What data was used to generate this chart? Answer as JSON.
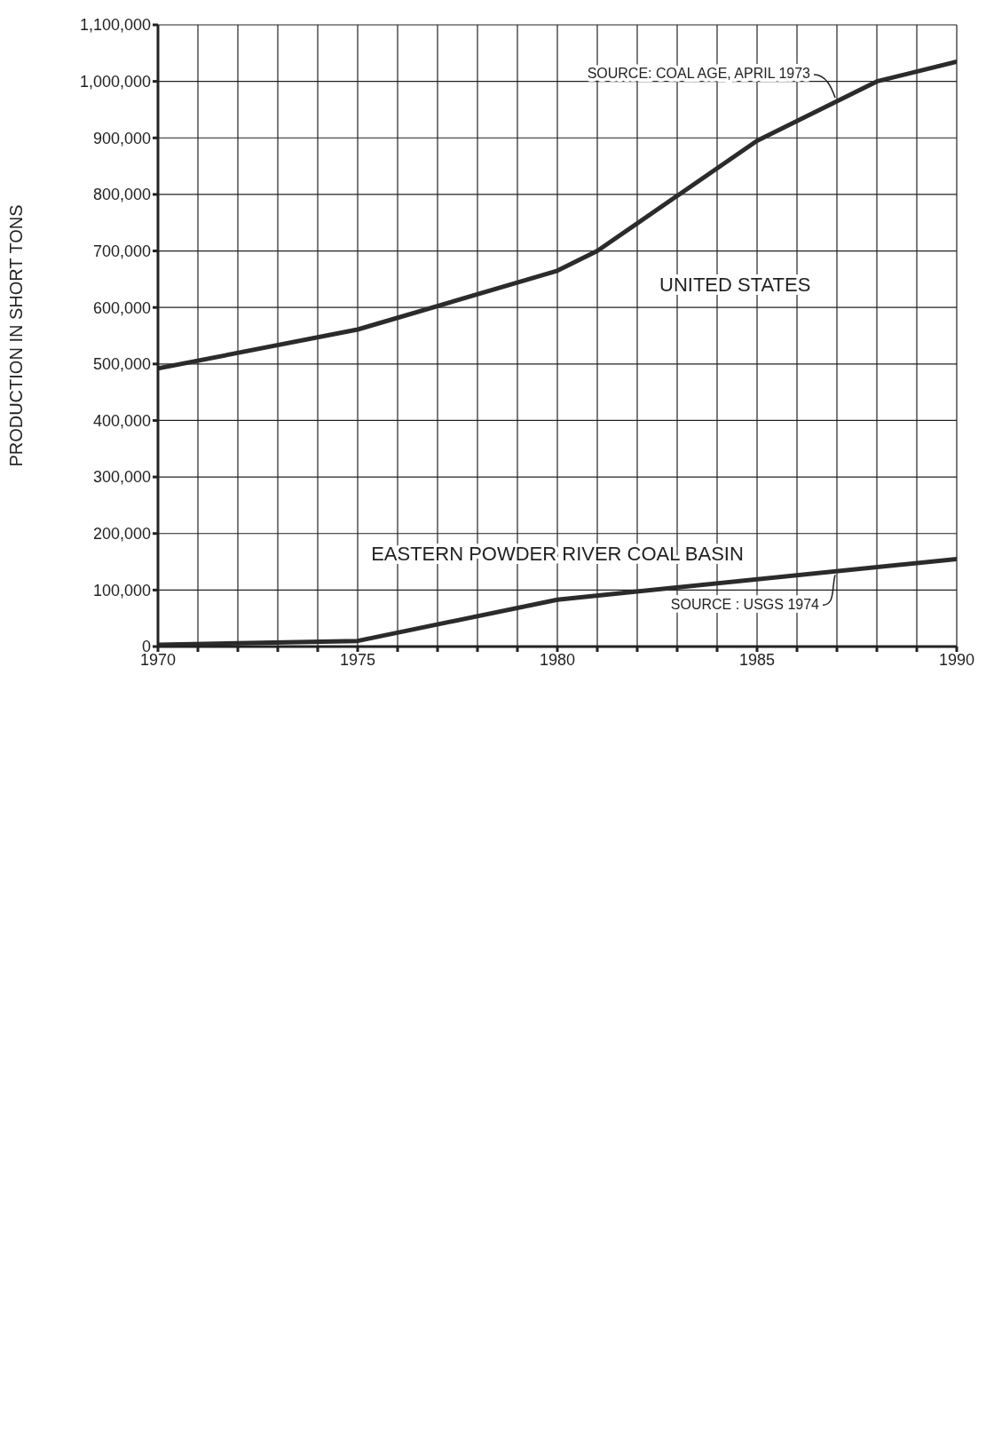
{
  "chart_data": {
    "type": "line",
    "ylabel": "PRODUCTION IN SHORT TONS",
    "series": [
      {
        "name": "UNITED STATES",
        "color": "#2b2b2b",
        "x": [
          1970,
          1975,
          1980,
          1981,
          1985,
          1988,
          1990
        ],
        "values": [
          492000,
          561000,
          665000,
          700000,
          895000,
          1000000,
          1035000
        ]
      },
      {
        "name": "EASTERN POWDER RIVER COAL BASIN",
        "color": "#2b2b2b",
        "x": [
          1970,
          1975,
          1980,
          1990
        ],
        "values": [
          3000,
          10000,
          83000,
          155000
        ]
      }
    ],
    "annotations": [
      {
        "text": "SOURCE: COAL AGE, APRIL 1973",
        "x": 1987,
        "y": 965000
      },
      {
        "text": "SOURCE : USGS 1974",
        "x": 1987,
        "y": 133000
      }
    ],
    "xlim": [
      1970,
      1990
    ],
    "xticks": [
      1970,
      {
        "value": 1971,
        "label": null
      },
      {
        "value": 1972,
        "label": null
      },
      {
        "value": 1973,
        "label": null
      },
      {
        "value": 1974,
        "label": null
      },
      1975,
      {
        "value": 1976,
        "label": null
      },
      {
        "value": 1977,
        "label": null
      },
      {
        "value": 1978,
        "label": null
      },
      {
        "value": 1979,
        "label": null
      },
      1980,
      {
        "value": 1981,
        "label": null
      },
      {
        "value": 1982,
        "label": null
      },
      {
        "value": 1983,
        "label": null
      },
      {
        "value": 1984,
        "label": null
      },
      1985,
      {
        "value": 1986,
        "label": null
      },
      {
        "value": 1987,
        "label": null
      },
      {
        "value": 1988,
        "label": null
      },
      {
        "value": 1989,
        "label": null
      },
      1990
    ],
    "ylim": [
      0,
      1100000
    ],
    "yticks": [
      0,
      {
        "value": 100000,
        "label": "100,000"
      },
      {
        "value": 200000,
        "label": "200,000"
      },
      {
        "value": 300000,
        "label": "300,000"
      },
      {
        "value": 400000,
        "label": "400,000"
      },
      {
        "value": 500000,
        "label": "500,000"
      },
      {
        "value": 600000,
        "label": "600,000"
      },
      {
        "value": 700000,
        "label": "700,000"
      },
      {
        "value": 800000,
        "label": "800,000"
      },
      {
        "value": 900000,
        "label": "900,000"
      },
      {
        "value": 1000000,
        "label": "1,000,000"
      },
      {
        "value": 1100000,
        "label": "1,100,000"
      }
    ],
    "grid": true,
    "line_style": "solid",
    "marker": "none"
  }
}
